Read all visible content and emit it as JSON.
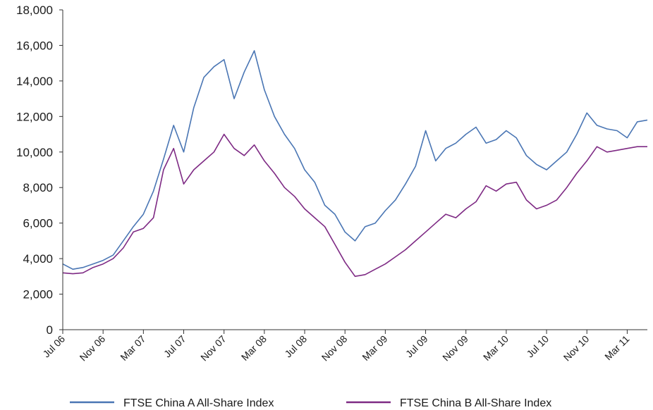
{
  "chart_data": {
    "type": "line",
    "title": "",
    "xlabel": "",
    "ylabel": "",
    "ylim": [
      0,
      18000
    ],
    "y_ticks": [
      "0",
      "2,000",
      "4,000",
      "6,000",
      "8,000",
      "10,000",
      "12,000",
      "14,000",
      "16,000",
      "18,000"
    ],
    "y_tick_values": [
      0,
      2000,
      4000,
      6000,
      8000,
      10000,
      12000,
      14000,
      16000,
      18000
    ],
    "x_ticks": [
      "Jul 06",
      "Nov 06",
      "Mar 07",
      "Jul 07",
      "Nov 07",
      "Mar 08",
      "Jul 08",
      "Nov 08",
      "Mar 09",
      "Jul 09",
      "Nov 09",
      "Mar 10",
      "Jul 10",
      "Nov 10",
      "Mar 11"
    ],
    "x_tick_dates": [
      "2006-07",
      "2006-11",
      "2007-03",
      "2007-07",
      "2007-11",
      "2008-03",
      "2008-07",
      "2008-11",
      "2009-03",
      "2009-07",
      "2009-11",
      "2010-03",
      "2010-07",
      "2010-11",
      "2011-03"
    ],
    "xlim": [
      "2006-07",
      "2011-05"
    ],
    "grid": false,
    "legend_position": "bottom",
    "series": [
      {
        "name": "FTSE China A All-Share Index",
        "color": "#4a76b4",
        "x": [
          "2006-07",
          "2006-08",
          "2006-09",
          "2006-10",
          "2006-11",
          "2006-12",
          "2007-01",
          "2007-02",
          "2007-03",
          "2007-04",
          "2007-05",
          "2007-06",
          "2007-07",
          "2007-08",
          "2007-09",
          "2007-10",
          "2007-11",
          "2007-12",
          "2008-01",
          "2008-02",
          "2008-03",
          "2008-04",
          "2008-05",
          "2008-06",
          "2008-07",
          "2008-08",
          "2008-09",
          "2008-10",
          "2008-11",
          "2008-12",
          "2009-01",
          "2009-02",
          "2009-03",
          "2009-04",
          "2009-05",
          "2009-06",
          "2009-07",
          "2009-08",
          "2009-09",
          "2009-10",
          "2009-11",
          "2009-12",
          "2010-01",
          "2010-02",
          "2010-03",
          "2010-04",
          "2010-05",
          "2010-06",
          "2010-07",
          "2010-08",
          "2010-09",
          "2010-10",
          "2010-11",
          "2010-12",
          "2011-01",
          "2011-02",
          "2011-03",
          "2011-04",
          "2011-05"
        ],
        "y": [
          3700,
          3400,
          3500,
          3700,
          3900,
          4200,
          5000,
          5800,
          6500,
          7800,
          9600,
          11500,
          10000,
          12500,
          14200,
          14800,
          15200,
          13000,
          14500,
          15700,
          13500,
          12000,
          11000,
          10200,
          9000,
          8300,
          7000,
          6500,
          5500,
          5000,
          5800,
          6000,
          6700,
          7300,
          8200,
          9200,
          11200,
          9500,
          10200,
          10500,
          11000,
          11400,
          10500,
          10700,
          11200,
          10800,
          9800,
          9300,
          9000,
          9500,
          10000,
          11000,
          12200,
          11500,
          11300,
          11200,
          10800,
          11700,
          11800
        ]
      },
      {
        "name": "FTSE China B All-Share Index",
        "color": "#7e2a84",
        "x": [
          "2006-07",
          "2006-08",
          "2006-09",
          "2006-10",
          "2006-11",
          "2006-12",
          "2007-01",
          "2007-02",
          "2007-03",
          "2007-04",
          "2007-05",
          "2007-06",
          "2007-07",
          "2007-08",
          "2007-09",
          "2007-10",
          "2007-11",
          "2007-12",
          "2008-01",
          "2008-02",
          "2008-03",
          "2008-04",
          "2008-05",
          "2008-06",
          "2008-07",
          "2008-08",
          "2008-09",
          "2008-10",
          "2008-11",
          "2008-12",
          "2009-01",
          "2009-02",
          "2009-03",
          "2009-04",
          "2009-05",
          "2009-06",
          "2009-07",
          "2009-08",
          "2009-09",
          "2009-10",
          "2009-11",
          "2009-12",
          "2010-01",
          "2010-02",
          "2010-03",
          "2010-04",
          "2010-05",
          "2010-06",
          "2010-07",
          "2010-08",
          "2010-09",
          "2010-10",
          "2010-11",
          "2010-12",
          "2011-01",
          "2011-02",
          "2011-03",
          "2011-04",
          "2011-05"
        ],
        "y": [
          3200,
          3150,
          3200,
          3500,
          3700,
          4000,
          4600,
          5500,
          5700,
          6300,
          9000,
          10200,
          8200,
          9000,
          9500,
          10000,
          11000,
          10200,
          9800,
          10400,
          9500,
          8800,
          8000,
          7500,
          6800,
          6300,
          5800,
          4800,
          3800,
          3000,
          3100,
          3400,
          3700,
          4100,
          4500,
          5000,
          5500,
          6000,
          6500,
          6300,
          6800,
          7200,
          8100,
          7800,
          8200,
          8300,
          7300,
          6800,
          7000,
          7300,
          8000,
          8800,
          9500,
          10300,
          10000,
          10100,
          10200,
          10300,
          10300
        ]
      }
    ]
  }
}
